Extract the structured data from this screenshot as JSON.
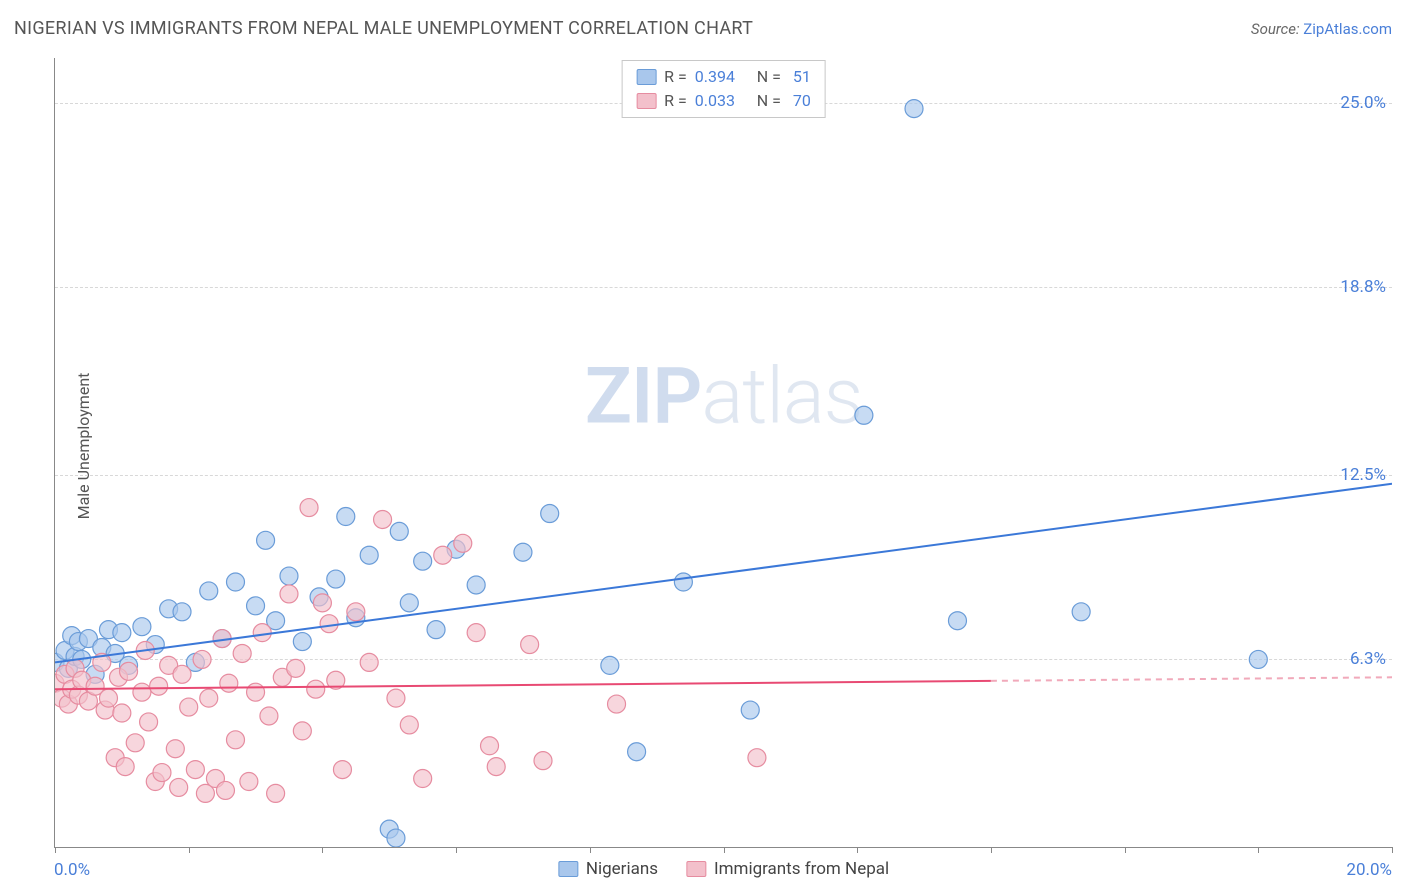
{
  "title": "NIGERIAN VS IMMIGRANTS FROM NEPAL MALE UNEMPLOYMENT CORRELATION CHART",
  "source_prefix": "Source: ",
  "source_name": "ZipAtlas.com",
  "y_axis_label": "Male Unemployment",
  "watermark": {
    "pre": "ZIP",
    "post": "atlas"
  },
  "chart": {
    "type": "scatter",
    "background_color": "#ffffff",
    "grid_color": "#d8d8d8",
    "axis_color": "#888888",
    "xlim": [
      0,
      20
    ],
    "ylim": [
      0,
      26.5
    ],
    "x_ticks": {
      "labels": [
        "0.0%",
        "20.0%"
      ],
      "mark_positions": [
        0,
        2,
        4,
        6,
        8,
        10,
        12,
        14,
        16,
        18,
        20
      ]
    },
    "y_ticks": [
      {
        "value": 6.3,
        "label": "6.3%"
      },
      {
        "value": 12.5,
        "label": "12.5%"
      },
      {
        "value": 18.8,
        "label": "18.8%"
      },
      {
        "value": 25.0,
        "label": "25.0%"
      }
    ],
    "series": [
      {
        "key": "nigerians",
        "label": "Nigerians",
        "marker_color": "#a9c7ec",
        "marker_stroke": "#6a9cd8",
        "line_color": "#3b78d8",
        "dash_color": "#9bb9e6",
        "line_width": 2,
        "marker_radius": 9,
        "r": "0.394",
        "n": "51",
        "trend": {
          "x1": 0.0,
          "y1": 6.2,
          "x2": 20.0,
          "y2": 12.2,
          "solid_to_x": 20.0
        },
        "points": [
          [
            0.0,
            6.2
          ],
          [
            0.15,
            6.6
          ],
          [
            0.2,
            6.0
          ],
          [
            0.25,
            7.1
          ],
          [
            0.3,
            6.4
          ],
          [
            0.35,
            6.9
          ],
          [
            0.4,
            6.3
          ],
          [
            0.5,
            7.0
          ],
          [
            0.6,
            5.8
          ],
          [
            0.7,
            6.7
          ],
          [
            0.8,
            7.3
          ],
          [
            0.9,
            6.5
          ],
          [
            1.0,
            7.2
          ],
          [
            1.1,
            6.1
          ],
          [
            1.3,
            7.4
          ],
          [
            1.5,
            6.8
          ],
          [
            1.7,
            8.0
          ],
          [
            1.9,
            7.9
          ],
          [
            2.1,
            6.2
          ],
          [
            2.3,
            8.6
          ],
          [
            2.5,
            7.0
          ],
          [
            2.7,
            8.9
          ],
          [
            3.0,
            8.1
          ],
          [
            3.15,
            10.3
          ],
          [
            3.3,
            7.6
          ],
          [
            3.5,
            9.1
          ],
          [
            3.7,
            6.9
          ],
          [
            3.95,
            8.4
          ],
          [
            4.2,
            9.0
          ],
          [
            4.35,
            11.1
          ],
          [
            4.5,
            7.7
          ],
          [
            4.7,
            9.8
          ],
          [
            5.0,
            0.6
          ],
          [
            5.1,
            0.3
          ],
          [
            5.15,
            10.6
          ],
          [
            5.3,
            8.2
          ],
          [
            5.5,
            9.6
          ],
          [
            5.7,
            7.3
          ],
          [
            6.0,
            10.0
          ],
          [
            6.3,
            8.8
          ],
          [
            7.0,
            9.9
          ],
          [
            7.4,
            11.2
          ],
          [
            8.3,
            6.1
          ],
          [
            8.7,
            3.2
          ],
          [
            9.4,
            8.9
          ],
          [
            10.4,
            4.6
          ],
          [
            12.1,
            14.5
          ],
          [
            12.85,
            24.8
          ],
          [
            13.5,
            7.6
          ],
          [
            15.35,
            7.9
          ],
          [
            18.0,
            6.3
          ]
        ]
      },
      {
        "key": "nepal",
        "label": "Immigrants from Nepal",
        "marker_color": "#f3c0cb",
        "marker_stroke": "#e68ca0",
        "line_color": "#e84a73",
        "dash_color": "#f1a9ba",
        "line_width": 2,
        "marker_radius": 9,
        "r": "0.033",
        "n": "70",
        "trend": {
          "x1": 0.0,
          "y1": 5.3,
          "x2": 20.0,
          "y2": 5.7,
          "solid_to_x": 14.0
        },
        "points": [
          [
            0.0,
            5.5
          ],
          [
            0.1,
            5.0
          ],
          [
            0.15,
            5.8
          ],
          [
            0.2,
            4.8
          ],
          [
            0.25,
            5.3
          ],
          [
            0.3,
            6.0
          ],
          [
            0.35,
            5.1
          ],
          [
            0.4,
            5.6
          ],
          [
            0.5,
            4.9
          ],
          [
            0.6,
            5.4
          ],
          [
            0.7,
            6.2
          ],
          [
            0.75,
            4.6
          ],
          [
            0.8,
            5.0
          ],
          [
            0.9,
            3.0
          ],
          [
            0.95,
            5.7
          ],
          [
            1.0,
            4.5
          ],
          [
            1.05,
            2.7
          ],
          [
            1.1,
            5.9
          ],
          [
            1.2,
            3.5
          ],
          [
            1.3,
            5.2
          ],
          [
            1.35,
            6.6
          ],
          [
            1.4,
            4.2
          ],
          [
            1.5,
            2.2
          ],
          [
            1.55,
            5.4
          ],
          [
            1.6,
            2.5
          ],
          [
            1.7,
            6.1
          ],
          [
            1.8,
            3.3
          ],
          [
            1.85,
            2.0
          ],
          [
            1.9,
            5.8
          ],
          [
            2.0,
            4.7
          ],
          [
            2.1,
            2.6
          ],
          [
            2.2,
            6.3
          ],
          [
            2.25,
            1.8
          ],
          [
            2.3,
            5.0
          ],
          [
            2.4,
            2.3
          ],
          [
            2.5,
            7.0
          ],
          [
            2.55,
            1.9
          ],
          [
            2.6,
            5.5
          ],
          [
            2.7,
            3.6
          ],
          [
            2.8,
            6.5
          ],
          [
            2.9,
            2.2
          ],
          [
            3.0,
            5.2
          ],
          [
            3.1,
            7.2
          ],
          [
            3.2,
            4.4
          ],
          [
            3.3,
            1.8
          ],
          [
            3.4,
            5.7
          ],
          [
            3.5,
            8.5
          ],
          [
            3.6,
            6.0
          ],
          [
            3.7,
            3.9
          ],
          [
            3.8,
            11.4
          ],
          [
            3.9,
            5.3
          ],
          [
            4.0,
            8.2
          ],
          [
            4.1,
            7.5
          ],
          [
            4.2,
            5.6
          ],
          [
            4.3,
            2.6
          ],
          [
            4.5,
            7.9
          ],
          [
            4.7,
            6.2
          ],
          [
            4.9,
            11.0
          ],
          [
            5.1,
            5.0
          ],
          [
            5.3,
            4.1
          ],
          [
            5.5,
            2.3
          ],
          [
            5.8,
            9.8
          ],
          [
            6.1,
            10.2
          ],
          [
            6.3,
            7.2
          ],
          [
            6.5,
            3.4
          ],
          [
            6.6,
            2.7
          ],
          [
            7.1,
            6.8
          ],
          [
            7.3,
            2.9
          ],
          [
            8.4,
            4.8
          ],
          [
            10.5,
            3.0
          ]
        ]
      }
    ]
  }
}
